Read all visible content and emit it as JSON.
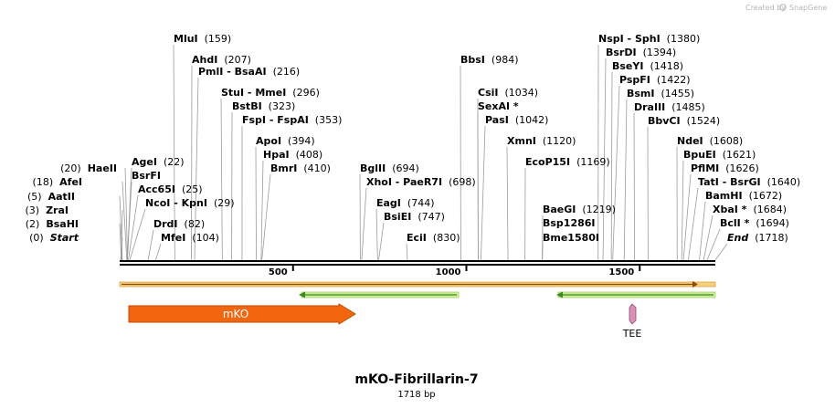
{
  "credit": {
    "prefix": "Created by",
    "brand": "SnapGene"
  },
  "title": "mKO-Fibrillarin-7",
  "subtitle": "1718 bp",
  "scale": {
    "ticks": [
      {
        "pos": 500,
        "label": "500"
      },
      {
        "pos": 1000,
        "label": "1000"
      },
      {
        "pos": 1500,
        "label": "1500"
      }
    ]
  },
  "colors": {
    "mko": "#f2660f",
    "feature_line": "#d0d0d0",
    "primer_arrow": "#3a8a1c",
    "ori_line": "#8a4b00",
    "tee": "#d98fb8"
  },
  "features": {
    "mko": {
      "label": "mKO",
      "start": 25,
      "end": 681
    },
    "tee": {
      "label": "TEE",
      "pos": 1498
    }
  },
  "sites_left": [
    {
      "name": "Start",
      "pos": "(0)",
      "site": 0,
      "italic": true
    },
    {
      "name": "BsaHI",
      "pos": "(2)",
      "site": 2
    },
    {
      "name": "ZraI",
      "pos": "(3)",
      "site": 3
    },
    {
      "name": "AatII",
      "pos": "(5)",
      "site": 5
    },
    {
      "name": "AfeI",
      "pos": "(18)",
      "site": 18
    },
    {
      "name": "HaeII",
      "pos": "(20)",
      "site": 20
    }
  ],
  "sites_right": [
    {
      "name": "MluI",
      "pos": "(159)",
      "site": 159
    },
    {
      "name": "AhdI",
      "pos": "(207)",
      "site": 207
    },
    {
      "name": "PmlI  -  BsaAI",
      "pos": "(216)",
      "site": 216
    },
    {
      "name": "StuI  -  MmeI",
      "pos": "(296)",
      "site": 296
    },
    {
      "name": "BstBI",
      "pos": "(323)",
      "site": 323
    },
    {
      "name": "FspI  -  FspAI",
      "pos": "(353)",
      "site": 353
    },
    {
      "name": "ApoI",
      "pos": "(394)",
      "site": 394
    },
    {
      "name": "HpaI",
      "pos": "(408)",
      "site": 408
    },
    {
      "name": "BmrI",
      "pos": "(410)",
      "site": 410
    },
    {
      "name": "AgeI",
      "pos": "(22)",
      "site": 22
    },
    {
      "name": "BsrFI",
      "pos": "",
      "site": 22
    },
    {
      "name": "Acc65I",
      "pos": "(25)",
      "site": 25
    },
    {
      "name": "NcoI  -  KpnI",
      "pos": "(29)",
      "site": 29
    },
    {
      "name": "DrdI",
      "pos": "(82)",
      "site": 82
    },
    {
      "name": "MfeI",
      "pos": "(104)",
      "site": 104
    },
    {
      "name": "BglII",
      "pos": "(694)",
      "site": 694
    },
    {
      "name": "XhoI  -  PaeR7I",
      "pos": "(698)",
      "site": 698
    },
    {
      "name": "EagI",
      "pos": "(744)",
      "site": 744
    },
    {
      "name": "BsiEI",
      "pos": "(747)",
      "site": 747
    },
    {
      "name": "EciI",
      "pos": "(830)",
      "site": 830
    },
    {
      "name": "BbsI",
      "pos": "(984)",
      "site": 984
    },
    {
      "name": "CsiI",
      "pos": "(1034)",
      "site": 1034
    },
    {
      "name": "SexAI *",
      "pos": "",
      "site": 1034
    },
    {
      "name": "PasI",
      "pos": "(1042)",
      "site": 1042
    },
    {
      "name": "XmnI",
      "pos": "(1120)",
      "site": 1120
    },
    {
      "name": "EcoP15I",
      "pos": "(1169)",
      "site": 1169
    },
    {
      "name": "BaeGI",
      "pos": "(1219)",
      "site": 1219
    },
    {
      "name": "Bsp1286I",
      "pos": "",
      "site": 1219
    },
    {
      "name": "Bme1580I",
      "pos": "",
      "site": 1219
    },
    {
      "name": "NspI  -  SphI",
      "pos": "(1380)",
      "site": 1380
    },
    {
      "name": "BsrDI",
      "pos": "(1394)",
      "site": 1394
    },
    {
      "name": "BseYI",
      "pos": "(1418)",
      "site": 1418
    },
    {
      "name": "PspFI",
      "pos": "(1422)",
      "site": 1422
    },
    {
      "name": "BsmI",
      "pos": "(1455)",
      "site": 1455
    },
    {
      "name": "DraIII",
      "pos": "(1485)",
      "site": 1485
    },
    {
      "name": "BbvCI",
      "pos": "(1524)",
      "site": 1524
    },
    {
      "name": "NdeI",
      "pos": "(1608)",
      "site": 1608
    },
    {
      "name": "BpuEI",
      "pos": "(1621)",
      "site": 1621
    },
    {
      "name": "PflMI",
      "pos": "(1626)",
      "site": 1626
    },
    {
      "name": "TatI  -  BsrGI",
      "pos": "(1640)",
      "site": 1640
    },
    {
      "name": "BamHI",
      "pos": "(1672)",
      "site": 1672
    },
    {
      "name": "XbaI *",
      "pos": "(1684)",
      "site": 1684
    },
    {
      "name": "BclI *",
      "pos": "(1694)",
      "site": 1694
    },
    {
      "name": "End",
      "pos": "(1718)",
      "site": 1718,
      "italic": true
    }
  ]
}
